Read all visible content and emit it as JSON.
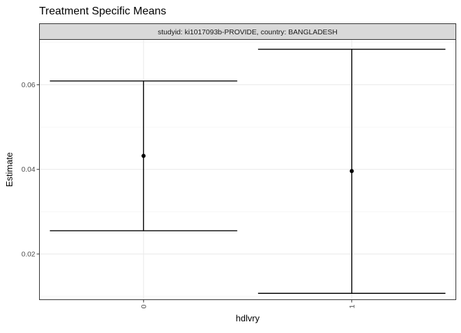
{
  "chart_data": {
    "type": "errorbar",
    "title": "Treatment Specific Means",
    "facet_label": "studyid: ki1017093b-PROVIDE, country: BANGLADESH",
    "xlabel": "hdlvry",
    "ylabel": "Estimate",
    "categories": [
      "0",
      "1"
    ],
    "series": [
      {
        "name": "Estimate",
        "points": [
          {
            "x": "0",
            "estimate": 0.0432,
            "lower": 0.0255,
            "upper": 0.0609
          },
          {
            "x": "1",
            "estimate": 0.0396,
            "lower": 0.0107,
            "upper": 0.0684
          }
        ]
      }
    ],
    "ylim": [
      0.0092,
      0.0707
    ],
    "y_ticks": [
      0.02,
      0.04,
      0.06
    ],
    "y_tick_labels": [
      "0.02",
      "0.04",
      "0.06"
    ],
    "grid": true
  }
}
